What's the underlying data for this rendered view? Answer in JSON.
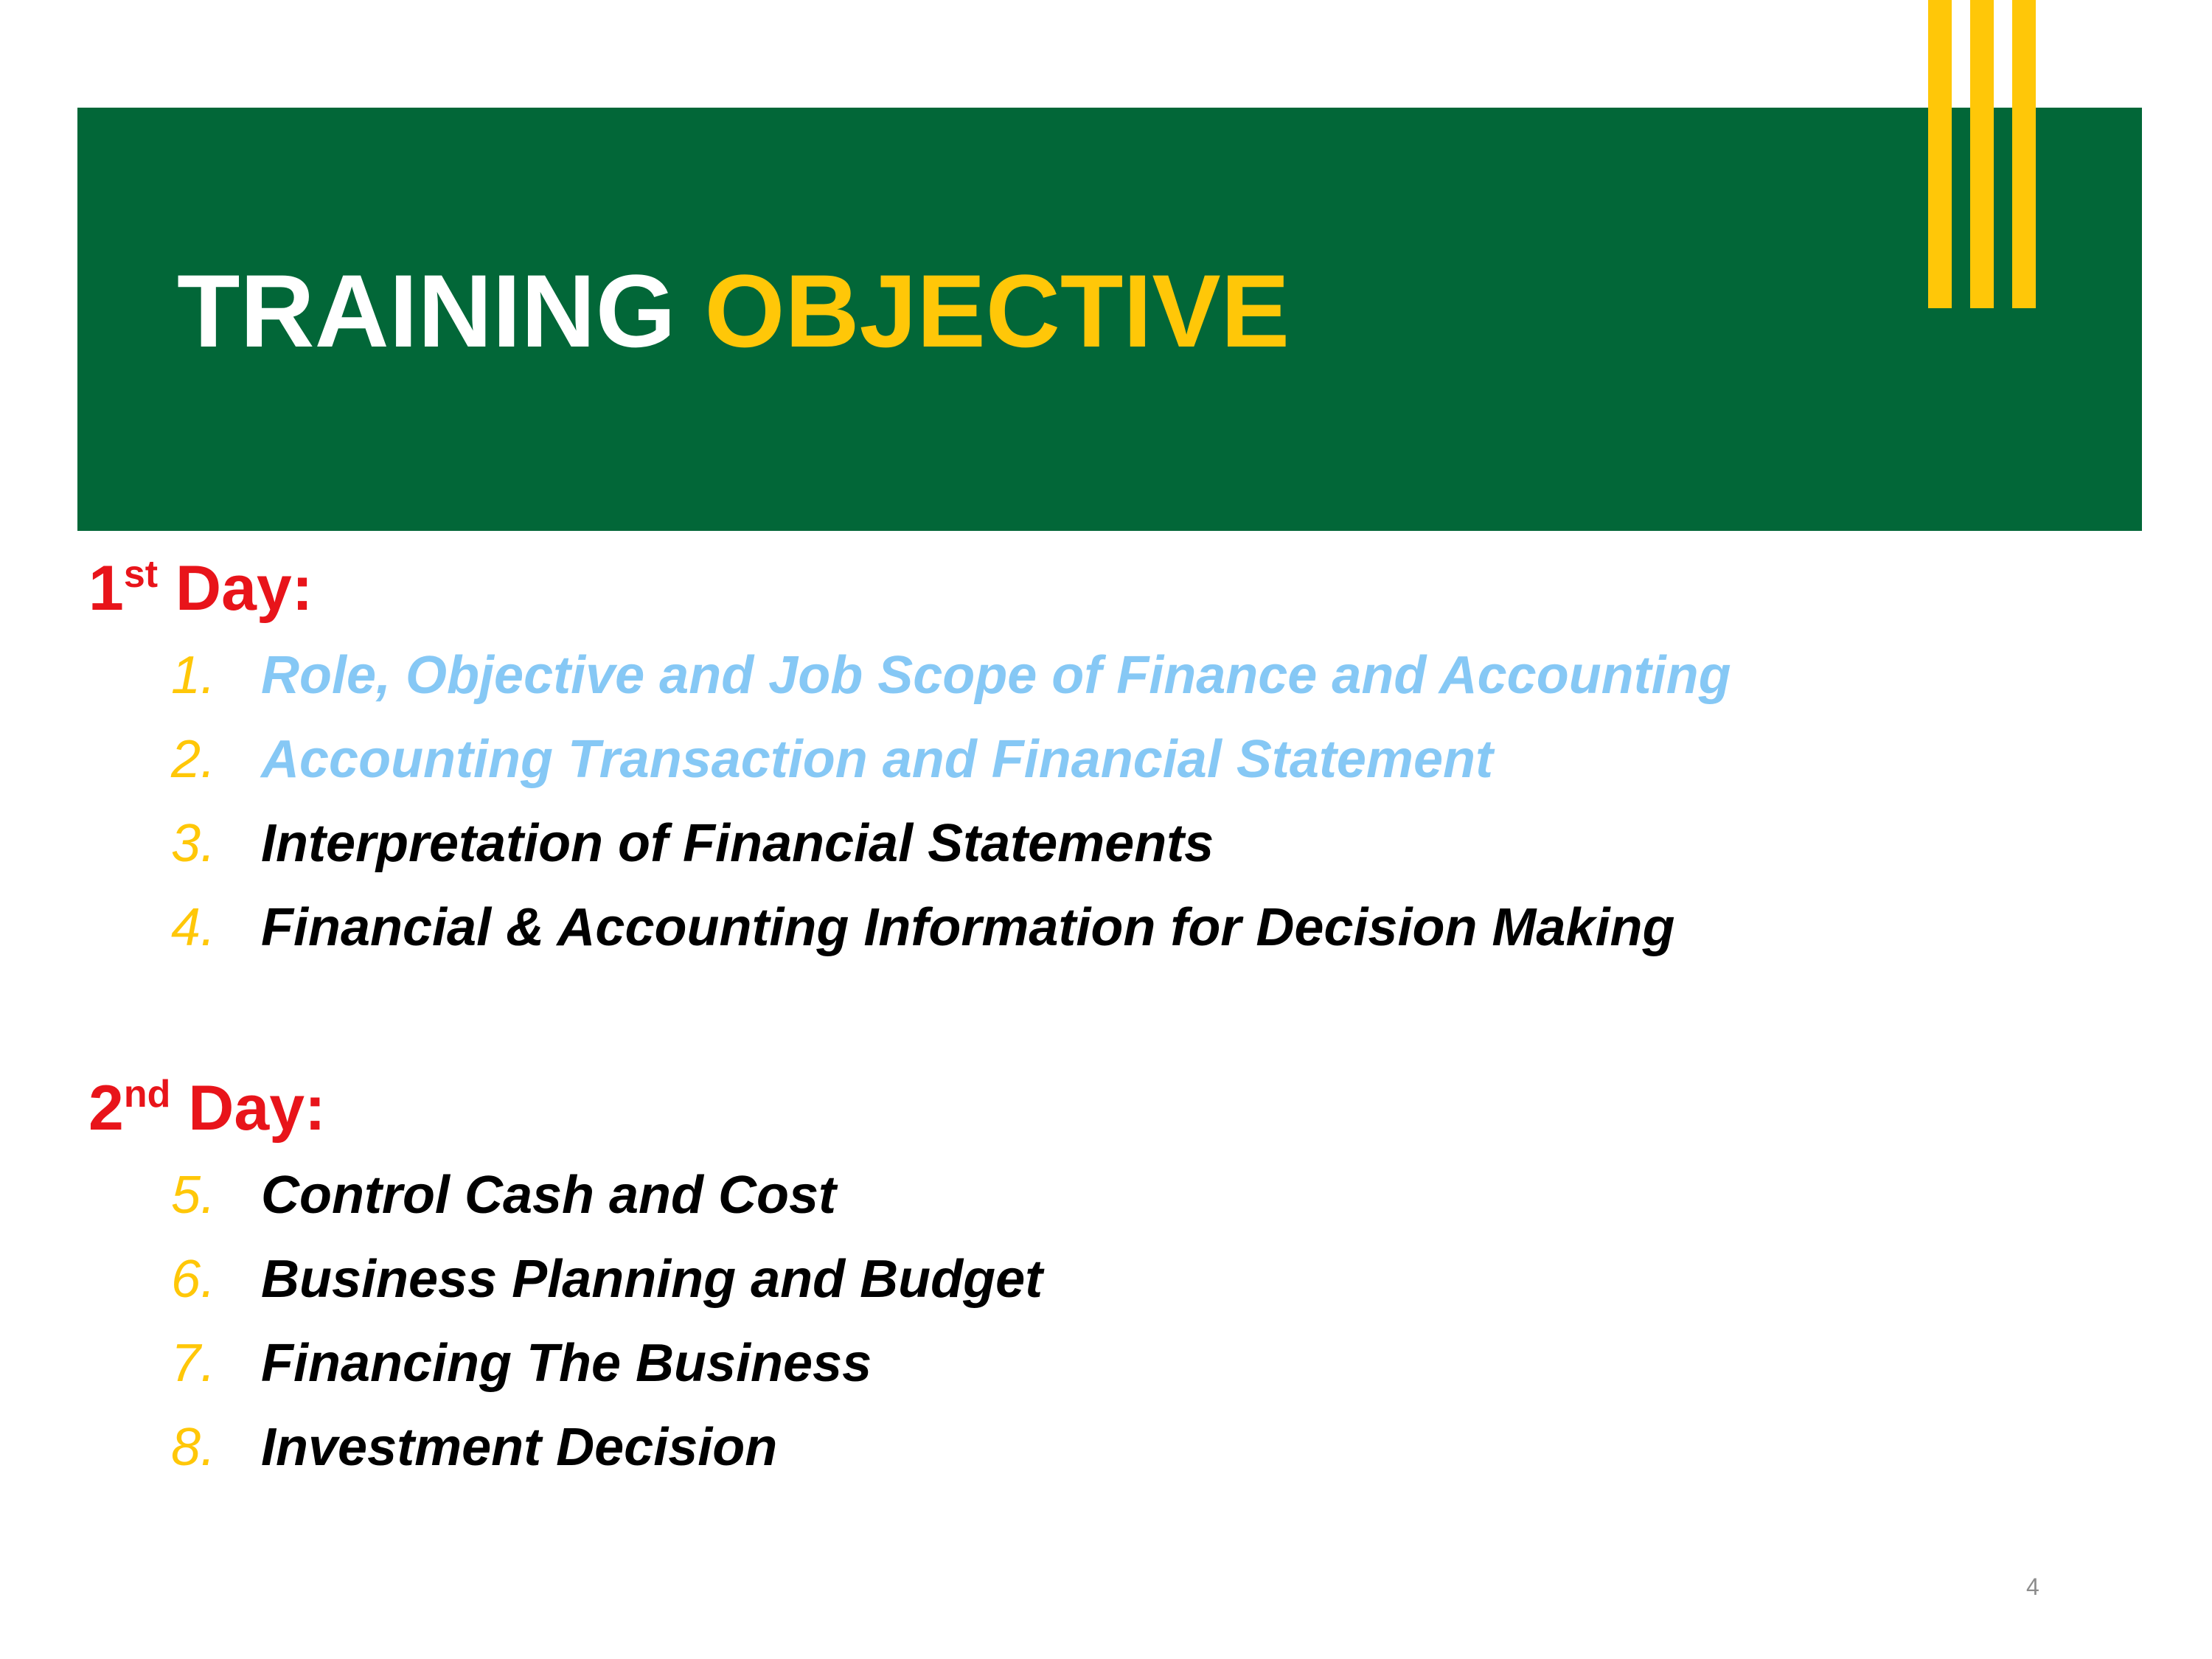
{
  "colors": {
    "header_band": "#026738",
    "accent_yellow": "#FFC708",
    "day_heading": "#E8141A",
    "completed_topic": "#86C8F5",
    "topic_text": "#000000"
  },
  "title": {
    "part1": "TRAINING",
    "part2": "OBJECTIVE"
  },
  "days": [
    {
      "number": "1",
      "suffix": "st",
      "label": "Day:",
      "topics": [
        {
          "num": "1.",
          "text": "Role, Objective and Job Scope of Finance and Accounting",
          "highlighted": true
        },
        {
          "num": "2.",
          "text": "Accounting Transaction and Financial Statement",
          "highlighted": true
        },
        {
          "num": "3.",
          "text": "Interpretation of Financial Statements",
          "highlighted": false
        },
        {
          "num": "4.",
          "text": "Financial & Accounting Information for Decision Making",
          "highlighted": false
        }
      ]
    },
    {
      "number": "2",
      "suffix": "nd",
      "label": "Day:",
      "topics": [
        {
          "num": "5.",
          "text": "Control Cash and Cost",
          "highlighted": false
        },
        {
          "num": "6.",
          "text": "Business Planning and Budget",
          "highlighted": false
        },
        {
          "num": "7.",
          "text": "Financing The Business",
          "highlighted": false
        },
        {
          "num": "8.",
          "text": "Investment Decision",
          "highlighted": false
        }
      ]
    }
  ],
  "page_number": "4"
}
